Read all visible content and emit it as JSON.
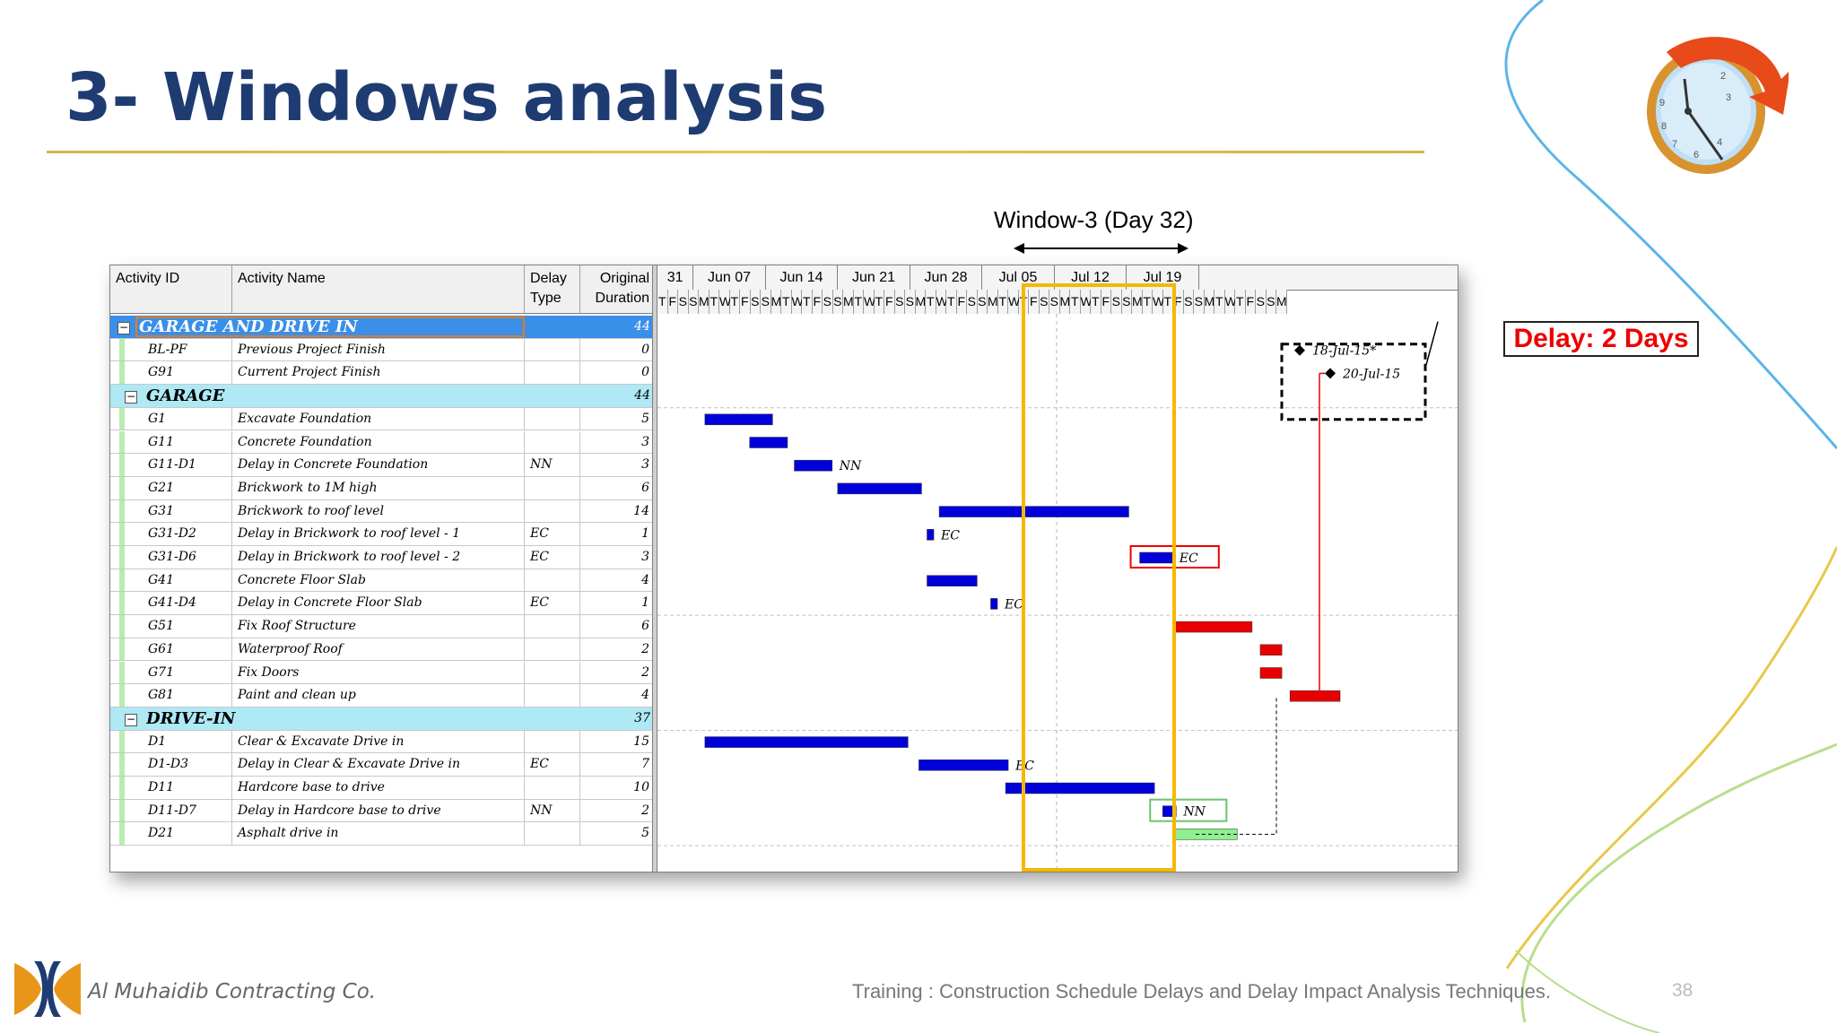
{
  "slide": {
    "title": "3- Windows analysis",
    "window_label": "Window-3 (Day 32)",
    "delay_label": "Delay: 2 Days",
    "footer_company": "Al Muhaidib Contracting Co.",
    "footer_training": "Training : Construction Schedule Delays and Delay Impact Analysis Techniques.",
    "page_number": "38"
  },
  "gantt": {
    "headers": {
      "activity_id": "Activity ID",
      "activity_name": "Activity Name",
      "delay_type_1": "Delay",
      "delay_type_2": "Type",
      "duration_1": "Original",
      "duration_2": "Duration"
    },
    "weeks": [
      "31",
      "Jun 07",
      "Jun 14",
      "Jun 21",
      "Jun 28",
      "Jul 05",
      "Jul 12",
      "Jul 19"
    ],
    "days": [
      "T",
      "F",
      "S",
      "S",
      "M",
      "T",
      "W",
      "T",
      "F",
      "S",
      "S",
      "M",
      "T",
      "W",
      "T",
      "F",
      "S",
      "S",
      "M",
      "T",
      "W",
      "T",
      "F",
      "S",
      "S",
      "M",
      "T",
      "W",
      "T",
      "F",
      "S",
      "S",
      "M",
      "T",
      "W",
      "T",
      "F",
      "S",
      "S",
      "M",
      "T",
      "W",
      "T",
      "F",
      "S",
      "S",
      "M",
      "T",
      "W",
      "T",
      "F",
      "S",
      "S",
      "M",
      "T",
      "W",
      "T",
      "F",
      "S",
      "S",
      "M"
    ],
    "milestones": {
      "baseline_finish": "18-Jul-15*",
      "current_finish": "20-Jul-15"
    },
    "rows": [
      {
        "kind": "group",
        "level": 0,
        "name": "GARAGE AND DRIVE IN",
        "dur": "44"
      },
      {
        "kind": "task",
        "id": "BL-PF",
        "name": "Previous Project Finish",
        "type": "",
        "dur": "0"
      },
      {
        "kind": "task",
        "id": "G91",
        "name": "Current Project Finish",
        "type": "",
        "dur": "0"
      },
      {
        "kind": "group",
        "level": 1,
        "name": "GARAGE",
        "dur": "44"
      },
      {
        "kind": "task",
        "id": "G1",
        "name": "Excavate Foundation",
        "type": "",
        "dur": "5",
        "bar": {
          "s": 3.5,
          "d": 5,
          "c": "blue"
        }
      },
      {
        "kind": "task",
        "id": "G11",
        "name": "Concrete Foundation",
        "type": "",
        "dur": "3",
        "bar": {
          "s": 6.8,
          "d": 2.8,
          "c": "blue"
        }
      },
      {
        "kind": "task",
        "id": "G11-D1",
        "name": "Delay in Concrete Foundation",
        "type": "NN",
        "dur": "3",
        "bar": {
          "s": 10.1,
          "d": 2.8,
          "c": "blue"
        },
        "tag": "NN"
      },
      {
        "kind": "task",
        "id": "G21",
        "name": "Brickwork to 1M high",
        "type": "",
        "dur": "6",
        "bar": {
          "s": 13.3,
          "d": 6.2,
          "c": "blue"
        }
      },
      {
        "kind": "task",
        "id": "G31",
        "name": "Brickwork to roof level",
        "type": "",
        "dur": "14",
        "bar": {
          "s": 20.8,
          "d": 14,
          "c": "blue"
        }
      },
      {
        "kind": "task",
        "id": "G31-D2",
        "name": "Delay in Brickwork to roof level - 1",
        "type": "EC",
        "dur": "1",
        "bar": {
          "s": 19.9,
          "d": 0.5,
          "c": "blue"
        },
        "tag": "EC"
      },
      {
        "kind": "task",
        "id": "G31-D6",
        "name": "Delay in Brickwork to roof level - 2",
        "type": "EC",
        "dur": "3",
        "bar": {
          "s": 35.6,
          "d": 2.4,
          "c": "blue"
        },
        "tag": "EC",
        "boxed": true
      },
      {
        "kind": "task",
        "id": "G41",
        "name": "Concrete Floor Slab",
        "type": "",
        "dur": "4",
        "bar": {
          "s": 19.9,
          "d": 3.7,
          "c": "blue"
        }
      },
      {
        "kind": "task",
        "id": "G41-D4",
        "name": "Delay in Concrete Floor Slab",
        "type": "EC",
        "dur": "1",
        "bar": {
          "s": 24.6,
          "d": 0.5,
          "c": "blue"
        },
        "tag": "EC"
      },
      {
        "kind": "task",
        "id": "G51",
        "name": "Fix Roof Structure",
        "type": "",
        "dur": "6",
        "bar": {
          "s": 38.2,
          "d": 5.7,
          "c": "red"
        }
      },
      {
        "kind": "task",
        "id": "G61",
        "name": "Waterproof Roof",
        "type": "",
        "dur": "2",
        "bar": {
          "s": 44.5,
          "d": 1.6,
          "c": "red"
        }
      },
      {
        "kind": "task",
        "id": "G71",
        "name": "Fix Doors",
        "type": "",
        "dur": "2",
        "bar": {
          "s": 44.5,
          "d": 1.6,
          "c": "red"
        }
      },
      {
        "kind": "task",
        "id": "G81",
        "name": "Paint and clean up",
        "type": "",
        "dur": "4",
        "bar": {
          "s": 46.7,
          "d": 3.7,
          "c": "red"
        }
      },
      {
        "kind": "group",
        "level": 1,
        "name": "DRIVE-IN",
        "dur": "37"
      },
      {
        "kind": "task",
        "id": "D1",
        "name": "Clear & Excavate Drive in",
        "type": "",
        "dur": "15",
        "bar": {
          "s": 3.5,
          "d": 15,
          "c": "blue"
        }
      },
      {
        "kind": "task",
        "id": "D1-D3",
        "name": "Delay in Clear & Excavate Drive in",
        "type": "EC",
        "dur": "7",
        "bar": {
          "s": 19.3,
          "d": 6.6,
          "c": "blue"
        },
        "tag": "EC"
      },
      {
        "kind": "task",
        "id": "D11",
        "name": "Hardcore base to drive",
        "type": "",
        "dur": "10",
        "bar": {
          "s": 25.7,
          "d": 11,
          "c": "blue"
        }
      },
      {
        "kind": "task",
        "id": "D11-D7",
        "name": "Delay in Hardcore base to drive",
        "type": "NN",
        "dur": "2",
        "bar": {
          "s": 37.3,
          "d": 1,
          "c": "blue"
        },
        "tag": "NN",
        "boxed_green": true
      },
      {
        "kind": "task",
        "id": "D21",
        "name": "Asphalt drive in",
        "type": "",
        "dur": "5",
        "bar": {
          "s": 38.2,
          "d": 4.6,
          "c": "green"
        }
      }
    ]
  },
  "colors": {
    "title": "#1f3c72",
    "bar_blue": "#0000d8",
    "bar_red": "#e60000",
    "bar_green": "#8ef08e",
    "window": "#f5b800",
    "group_bg": "#aee9f5",
    "top_group_bg": "#3a8fe8"
  }
}
